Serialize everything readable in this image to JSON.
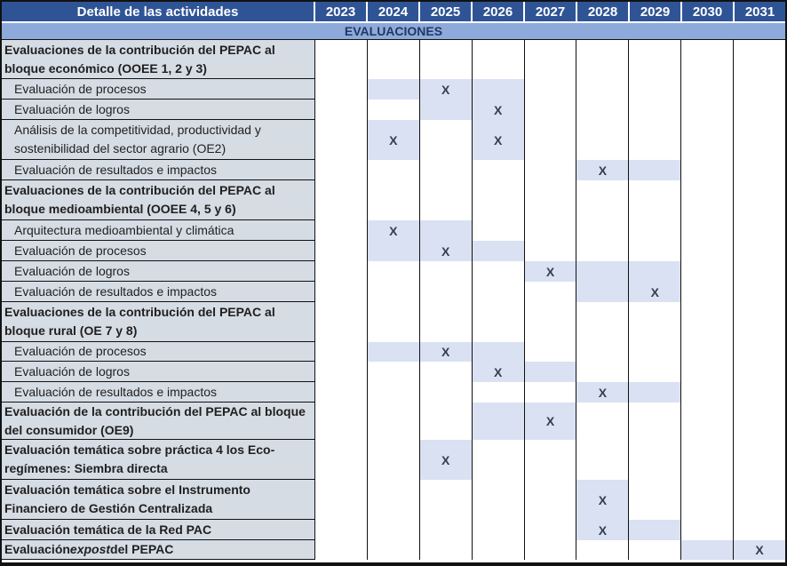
{
  "table": {
    "header": {
      "activities_label": "Detalle de las actividades",
      "years": [
        "2023",
        "2024",
        "2025",
        "2026",
        "2027",
        "2028",
        "2029",
        "2030",
        "2031"
      ]
    },
    "band_label": "EVALUACIONES",
    "x_glyph": "X",
    "colors": {
      "header_bg": "#2F5496",
      "header_text": "#FFFFFF",
      "band_bg": "#8EAADB",
      "band_text": "#1F3864",
      "activity_cell_bg": "#D6DCE4",
      "shaded_cell_bg": "#D9E1F2",
      "x_mark_color": "#333F50",
      "grid_line": "#111111"
    },
    "rows": [
      {
        "label": "Evaluaciones de la contribución del PEPAC al bloque económico (OOEE 1, 2 y 3)",
        "bold": true,
        "indent": false,
        "cells": {}
      },
      {
        "label": "Evaluación de procesos",
        "bold": false,
        "indent": true,
        "cells": {
          "2024": "shade",
          "2025": "x",
          "2026": "shade"
        }
      },
      {
        "label": "Evaluación de logros",
        "bold": false,
        "indent": true,
        "cells": {
          "2025": "shade",
          "2026": "x"
        }
      },
      {
        "label": "Análisis de la competitividad, productividad y sostenibilidad del sector agrario (OE2)",
        "bold": false,
        "indent": true,
        "cells": {
          "2024": "x",
          "2026": "x"
        }
      },
      {
        "label": "Evaluación de resultados e impactos",
        "bold": false,
        "indent": true,
        "cells": {
          "2028": "x",
          "2029": "shade"
        }
      },
      {
        "label": "Evaluaciones de la contribución del PEPAC al bloque medioambiental (OOEE 4, 5 y 6)",
        "bold": true,
        "indent": false,
        "cells": {}
      },
      {
        "label": "Arquitectura medioambiental y climática",
        "bold": false,
        "indent": true,
        "cells": {
          "2024": "x",
          "2025": "shade"
        }
      },
      {
        "label": "Evaluación de procesos",
        "bold": false,
        "indent": true,
        "cells": {
          "2024": "shade",
          "2025": "x",
          "2026": "shade"
        }
      },
      {
        "label": "Evaluación de logros",
        "bold": false,
        "indent": true,
        "cells": {
          "2027": "x",
          "2028": "shade",
          "2029": "shade"
        }
      },
      {
        "label": "Evaluación de resultados e impactos",
        "bold": false,
        "indent": true,
        "cells": {
          "2028": "shade",
          "2029": "x"
        }
      },
      {
        "label": "Evaluaciones de la contribución del PEPAC al bloque rural (OE 7 y 8)",
        "bold": true,
        "indent": false,
        "cells": {}
      },
      {
        "label": "Evaluación de procesos",
        "bold": false,
        "indent": true,
        "cells": {
          "2024": "shade",
          "2025": "x",
          "2026": "shade"
        }
      },
      {
        "label": "Evaluación de logros",
        "bold": false,
        "indent": true,
        "cells": {
          "2026": "x",
          "2027": "shade"
        }
      },
      {
        "label": "Evaluación de resultados e impactos",
        "bold": false,
        "indent": true,
        "cells": {
          "2028": "x",
          "2029": "shade"
        }
      },
      {
        "label": "Evaluación de la contribución del PEPAC al bloque del consumidor (OE9)",
        "bold": true,
        "indent": false,
        "cells": {
          "2026": "shade",
          "2027": "x"
        }
      },
      {
        "label": "Evaluación temática sobre práctica 4 los Eco-regímenes: Siembra directa",
        "bold": true,
        "indent": false,
        "cells": {
          "2025": "x"
        }
      },
      {
        "label": "Evaluación temática sobre el Instrumento Financiero de Gestión Centralizada",
        "bold": true,
        "indent": false,
        "cells": {
          "2028": "x"
        }
      },
      {
        "label": "Evaluación temática de la Red PAC",
        "bold": true,
        "indent": false,
        "cells": {
          "2028": "x",
          "2029": "shade"
        }
      },
      {
        "label_parts": [
          {
            "t": "Evaluación ",
            "i": false
          },
          {
            "t": "expost",
            "i": true
          },
          {
            "t": " del PEPAC",
            "i": false
          }
        ],
        "bold": true,
        "indent": false,
        "cells": {
          "2030": "shade",
          "2031": "x"
        }
      }
    ]
  }
}
